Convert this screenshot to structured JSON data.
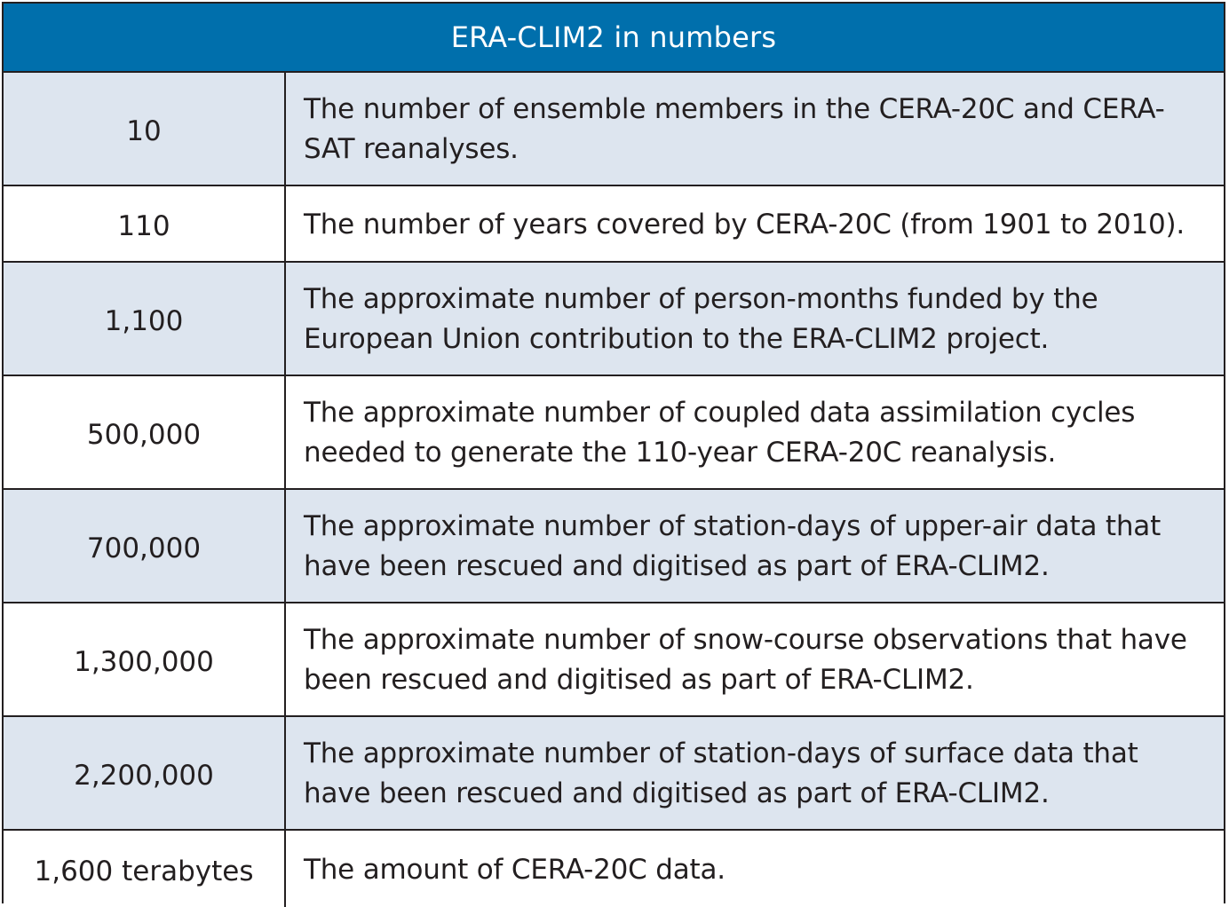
{
  "table": {
    "title": "ERA-CLIM2 in numbers",
    "colors": {
      "header_background": "#006fac",
      "header_text": "#ffffff",
      "shaded_row": "#dde5ef",
      "plain_row": "#ffffff",
      "border": "#231f20"
    },
    "rows": [
      {
        "number": "10",
        "description": "The number of ensemble members in the CERA-20C and CERA-SAT reanalyses.",
        "shaded": true
      },
      {
        "number": "110",
        "description": "The number of years covered by CERA-20C (from 1901 to 2010).",
        "shaded": false
      },
      {
        "number": "1,100",
        "description": "The approximate number of person-months funded by the European Union contribution to the ERA-CLIM2 project.",
        "shaded": true
      },
      {
        "number": "500,000",
        "description": "The approximate number of coupled data assimilation cycles needed to generate the 110-year CERA-20C reanalysis.",
        "shaded": false
      },
      {
        "number": "700,000",
        "description": "The approximate number of station-days of upper-air data that have been rescued and digitised as part of ERA-CLIM2.",
        "shaded": true
      },
      {
        "number": "1,300,000",
        "description": "The approximate number of snow-course observations that have been rescued and digitised as part of ERA-CLIM2.",
        "shaded": false
      },
      {
        "number": "2,200,000",
        "description": "The approximate number of station-days of surface data that have been rescued and digitised as part of ERA-CLIM2.",
        "shaded": true
      },
      {
        "number": "1,600 terabytes",
        "description": "The amount of CERA-20C data.",
        "shaded": false
      }
    ]
  }
}
